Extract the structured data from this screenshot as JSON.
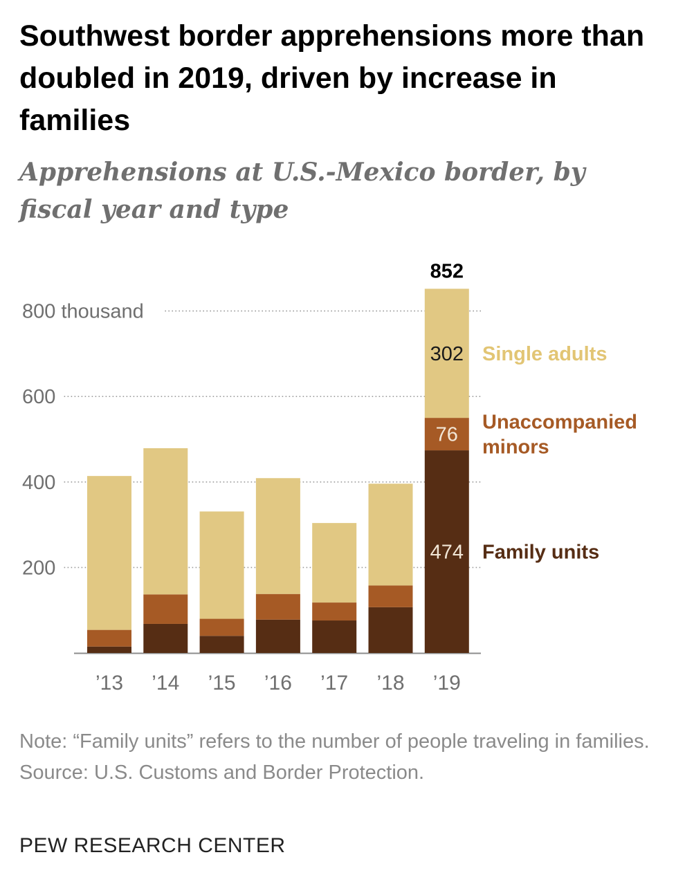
{
  "title": "Southwest border apprehensions more than doubled in 2019, driven by increase in families",
  "subtitle": "Apprehensions at U.S.-Mexico border, by fiscal year and type",
  "note": "Note: “Family units” refers to the number of people traveling in families.",
  "source": "Source: U.S. Customs and Border Protection.",
  "brand": "PEW RESEARCH CENTER",
  "colors": {
    "single_adults": "#e1c883",
    "unaccompanied_minors": "#a65a25",
    "family_units": "#562d14",
    "single_adults_label": "#e2c574",
    "minors_label": "#a65a25",
    "family_label": "#562d14",
    "axis_text": "#6f6f6f",
    "grid": "#9a9a9a"
  },
  "chart_data": {
    "type": "bar",
    "stacked": true,
    "categories": [
      "’13",
      "’14",
      "’15",
      "’16",
      "’17",
      "’18",
      "’19"
    ],
    "series": [
      {
        "name": "Family units",
        "color_key": "family_units",
        "values": [
          15,
          68,
          40,
          78,
          76,
          107,
          474
        ]
      },
      {
        "name": "Unaccompanied minors",
        "color_key": "unaccompanied_minors",
        "values": [
          39,
          69,
          40,
          60,
          42,
          51,
          76
        ]
      },
      {
        "name": "Single adults",
        "color_key": "single_adults",
        "values": [
          360,
          342,
          251,
          271,
          186,
          238,
          302
        ]
      }
    ],
    "series_labels": [
      {
        "series": "Single adults",
        "lines": [
          "Single adults"
        ],
        "color_key": "single_adults_label"
      },
      {
        "series": "Unaccompanied minors",
        "lines": [
          "Unaccompanied",
          "minors"
        ],
        "color_key": "minors_label"
      },
      {
        "series": "Family units",
        "lines": [
          "Family units"
        ],
        "color_key": "family_label"
      }
    ],
    "data_labels_last_bar": [
      "474",
      "76",
      "302"
    ],
    "total_label_last_bar": "852",
    "y_ticks": [
      {
        "value": 200,
        "label": "200"
      },
      {
        "value": 400,
        "label": "400"
      },
      {
        "value": 600,
        "label": "600"
      },
      {
        "value": 800,
        "label": "800 thousand"
      }
    ],
    "ylim": [
      0,
      860
    ],
    "grid": true,
    "grid_style": "dotted",
    "legend": "direct labels right of last bar"
  }
}
